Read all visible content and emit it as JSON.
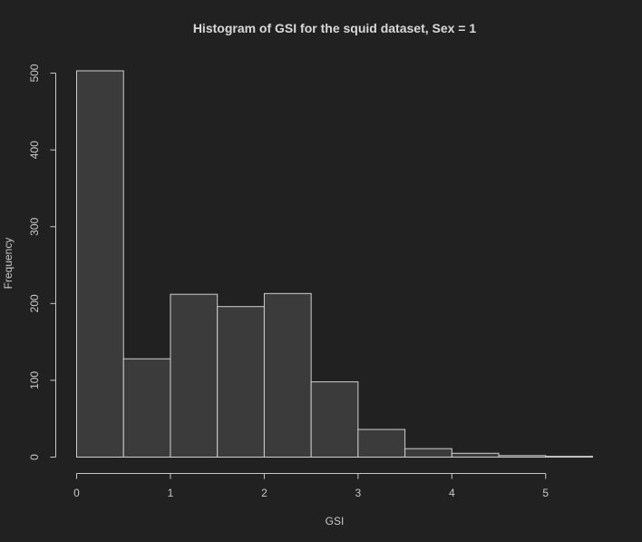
{
  "chart_data": {
    "type": "bar",
    "title": "Histogram of GSI for the squid dataset, Sex = 1",
    "xlabel": "GSI",
    "ylabel": "Frequency",
    "bin_edges": [
      0,
      0.5,
      1,
      1.5,
      2,
      2.5,
      3,
      3.5,
      4,
      4.5,
      5,
      5.5
    ],
    "values": [
      503,
      128,
      212,
      196,
      213,
      98,
      36,
      11,
      5,
      2,
      1
    ],
    "xlim": [
      0,
      5.5
    ],
    "ylim": [
      0,
      503
    ],
    "x_ticks": [
      0,
      1,
      2,
      3,
      4,
      5
    ],
    "y_ticks": [
      0,
      100,
      200,
      300,
      400,
      500
    ],
    "grid": false,
    "colors": {
      "background": "#212121",
      "bar_fill": "#3b3b3b",
      "bar_stroke": "#cfcfcf",
      "text": "#c8c8c8",
      "title": "#d9d9d9"
    }
  }
}
